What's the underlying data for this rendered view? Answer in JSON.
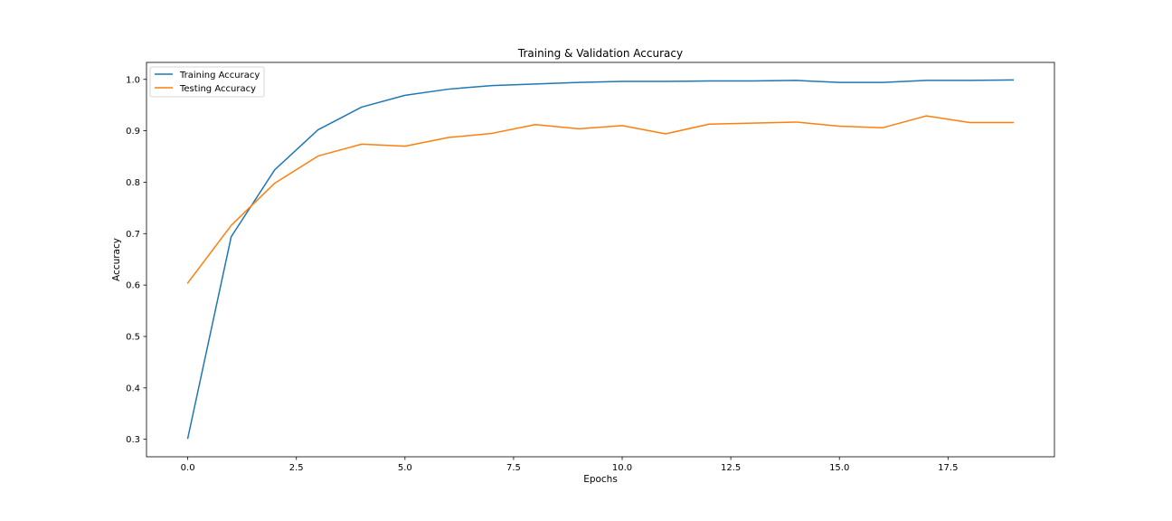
{
  "chart_data": {
    "type": "line",
    "title": "Training & Validation Accuracy",
    "xlabel": "Epochs",
    "ylabel": "Accuracy",
    "xlim": [
      -0.95,
      19.95
    ],
    "ylim": [
      0.266,
      1.033
    ],
    "xticks": [
      0.0,
      2.5,
      5.0,
      7.5,
      10.0,
      12.5,
      15.0,
      17.5
    ],
    "xtick_labels": [
      "0.0",
      "2.5",
      "5.0",
      "7.5",
      "10.0",
      "12.5",
      "15.0",
      "17.5"
    ],
    "yticks": [
      0.3,
      0.4,
      0.5,
      0.6,
      0.7,
      0.8,
      0.9,
      1.0
    ],
    "ytick_labels": [
      "0.3",
      "0.4",
      "0.5",
      "0.6",
      "0.7",
      "0.8",
      "0.9",
      "1.0"
    ],
    "grid": false,
    "legend_position": "upper-left",
    "x": [
      0,
      1,
      2,
      3,
      4,
      5,
      6,
      7,
      8,
      9,
      10,
      11,
      12,
      13,
      14,
      15,
      16,
      17,
      18,
      19
    ],
    "series": [
      {
        "name": "Training Accuracy",
        "color": "#1f77b4",
        "values": [
          0.302,
          0.694,
          0.824,
          0.902,
          0.946,
          0.969,
          0.981,
          0.988,
          0.991,
          0.994,
          0.996,
          0.996,
          0.997,
          0.997,
          0.998,
          0.994,
          0.994,
          0.998,
          0.998,
          0.999
        ]
      },
      {
        "name": "Testing Accuracy",
        "color": "#ff7f0e",
        "values": [
          0.604,
          0.716,
          0.798,
          0.851,
          0.874,
          0.87,
          0.887,
          0.895,
          0.912,
          0.904,
          0.91,
          0.894,
          0.913,
          0.915,
          0.917,
          0.909,
          0.906,
          0.929,
          0.916,
          0.916
        ]
      }
    ]
  }
}
